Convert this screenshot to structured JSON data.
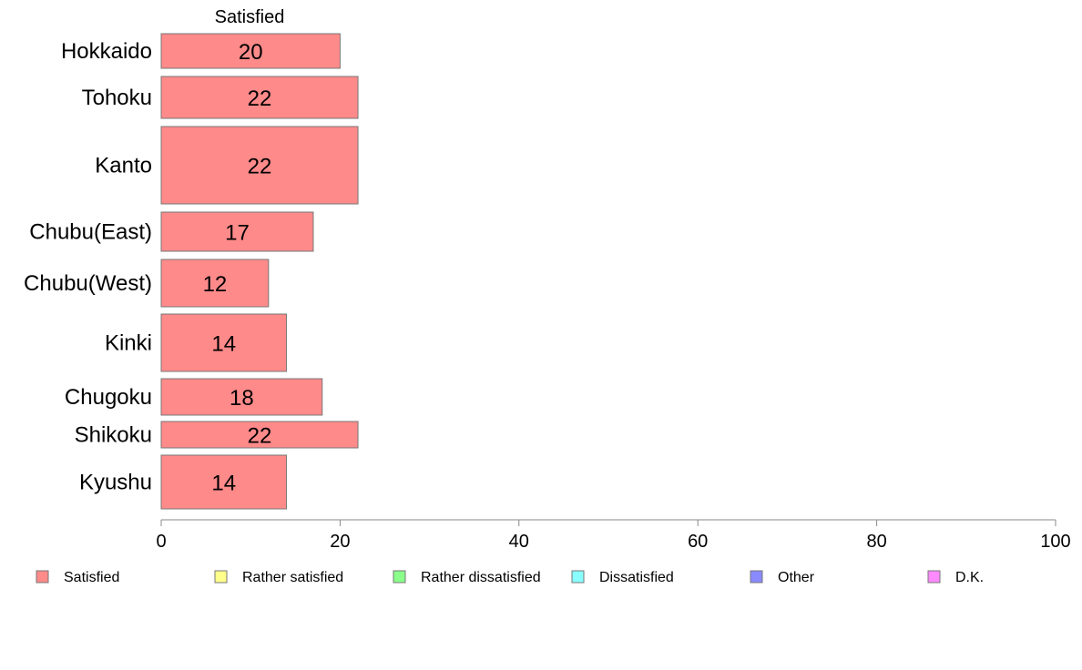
{
  "chart_data": {
    "type": "bar",
    "orientation": "horizontal",
    "stacked": true,
    "column_header": "Satisfied",
    "categories": [
      "Hokkaido",
      "Tohoku",
      "Kanto",
      "Chubu(East)",
      "Chubu(West)",
      "Kinki",
      "Chugoku",
      "Shikoku",
      "Kyushu"
    ],
    "series": [
      {
        "name": "Satisfied",
        "color": "#ff8a8a",
        "values": [
          20,
          22,
          22,
          17,
          12,
          14,
          18,
          22,
          14
        ]
      }
    ],
    "legend": [
      {
        "name": "Satisfied",
        "color": "#ff8a8a"
      },
      {
        "name": "Rather satisfied",
        "color": "#ffff8a"
      },
      {
        "name": "Rather dissatisfied",
        "color": "#8aff8a"
      },
      {
        "name": "Dissatisfied",
        "color": "#8affff"
      },
      {
        "name": "Other",
        "color": "#8a8aff"
      },
      {
        "name": "D.K.",
        "color": "#ff8aff"
      }
    ],
    "xlim": [
      0,
      100
    ],
    "xticks": [
      0,
      20,
      40,
      60,
      80,
      100
    ],
    "legend_position": "bottom",
    "grid": false
  }
}
